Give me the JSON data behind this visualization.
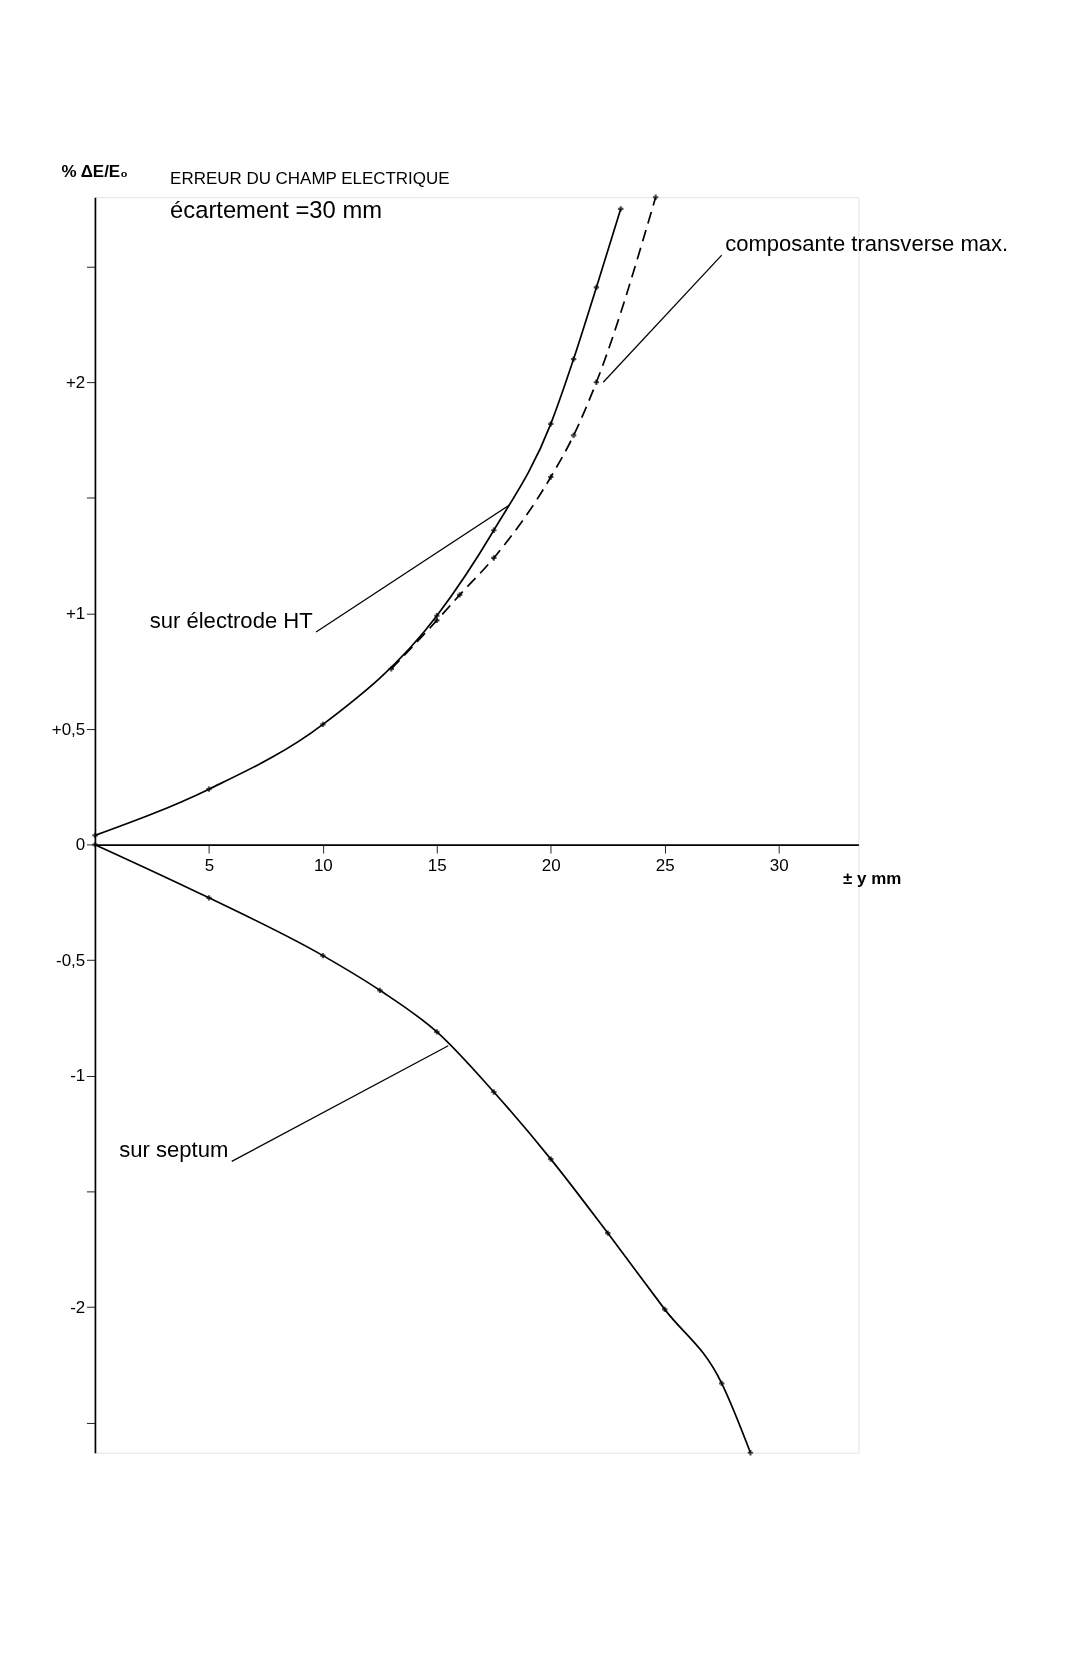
{
  "chart_data": {
    "type": "line",
    "title": "ERREUR DU CHAMP ELECTRIQUE",
    "subtitle": "écartement =30 mm",
    "xlabel": "± y mm",
    "ylabel": "% ΔE/E₀",
    "xlim": [
      0,
      33.5
    ],
    "ylim": [
      -2.63,
      2.8
    ],
    "xticks": [
      5,
      10,
      15,
      20,
      25,
      30
    ],
    "yticks": [
      {
        "value": 2.5,
        "label": null
      },
      {
        "value": 2,
        "label": "+2"
      },
      {
        "value": 1.5,
        "label": null
      },
      {
        "value": 1,
        "label": "+1"
      },
      {
        "value": 0.5,
        "label": "+0,5"
      },
      0,
      {
        "value": -0.5,
        "label": "-0,5"
      },
      {
        "value": -1,
        "label": "-1"
      },
      {
        "value": -1.5,
        "label": null
      },
      {
        "value": -2,
        "label": "-2"
      },
      {
        "value": -2.5,
        "label": null
      }
    ],
    "marker": "cross",
    "grid": false,
    "series": [
      {
        "color": "#000000",
        "line_style": "solid",
        "x": [
          0,
          5,
          10,
          15,
          17.5,
          20,
          21,
          22,
          23.07
        ],
        "values": [
          0.04,
          0.24,
          0.52,
          0.99,
          1.36,
          1.82,
          2.1,
          2.41,
          2.75
        ]
      },
      {
        "color": "#000000",
        "line_style": "dashed",
        "x": [
          13,
          15,
          16,
          17.5,
          20,
          21,
          22,
          24.6
        ],
        "values": [
          0.76,
          0.97,
          1.08,
          1.24,
          1.59,
          1.77,
          2.0,
          2.8
        ]
      },
      {
        "color": "#000000",
        "line_style": "solid",
        "x": [
          0,
          5,
          10,
          12.5,
          15,
          17.5,
          20,
          22.5,
          25,
          27.5,
          28.76
        ],
        "values": [
          0,
          -0.23,
          -0.48,
          -0.63,
          -0.81,
          -1.07,
          -1.36,
          -1.68,
          -2.01,
          -2.33,
          -2.63
        ]
      }
    ],
    "annotations": [
      {
        "text": "sur électrode HT",
        "x": 18.2,
        "y": 1.47
      },
      {
        "text": "composante transverse max.",
        "x": 22.3,
        "y": 2.0
      },
      {
        "text": "sur septum",
        "x": 15.5,
        "y": -0.87
      }
    ]
  }
}
